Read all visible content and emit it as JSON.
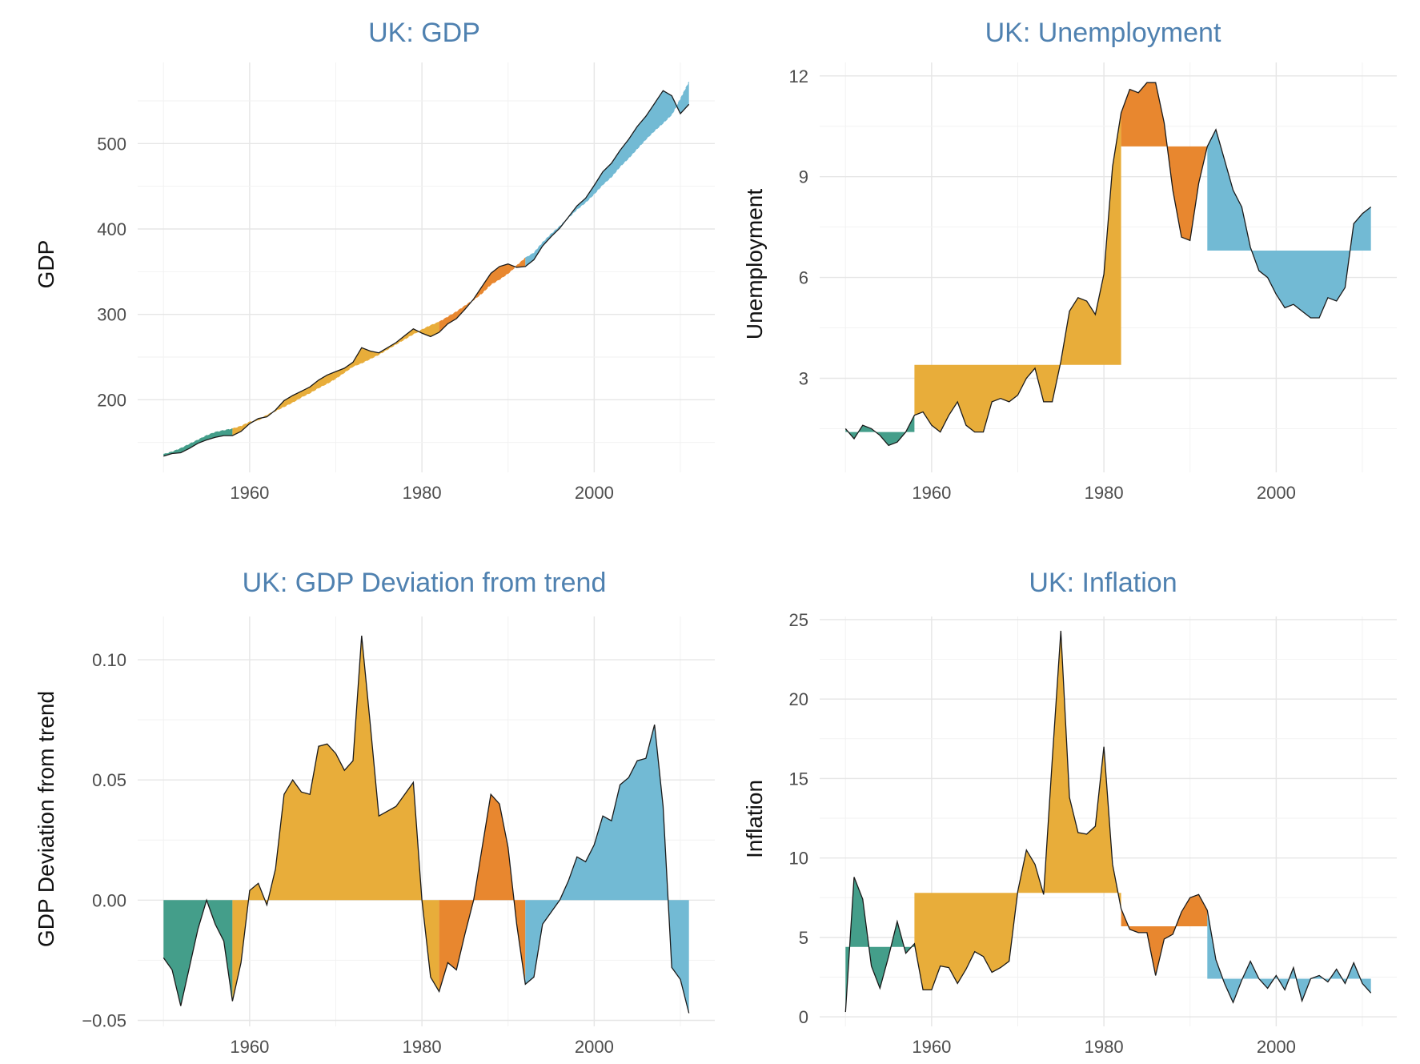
{
  "colors": {
    "period_1": "#449e8a",
    "period_2": "#e8ad3a",
    "period_3": "#e8872f",
    "period_4": "#72bad4",
    "title": "#4f81b0"
  },
  "periods": [
    {
      "from": 1950,
      "to": 1958
    },
    {
      "from": 1958,
      "to": 1982
    },
    {
      "from": 1982,
      "to": 1992
    },
    {
      "from": 1992,
      "to": 2011
    }
  ],
  "chart_data": [
    {
      "id": "gdp",
      "type": "area",
      "title": "UK: GDP",
      "xlabel": "",
      "ylabel": "GDP",
      "xlim": [
        1947,
        2014
      ],
      "ylim": [
        115,
        595
      ],
      "xticks": [
        1960,
        1980,
        2000
      ],
      "yticks": [
        200,
        300,
        400,
        500
      ],
      "fill_mode": "trend",
      "x": [
        1950,
        1951,
        1952,
        1953,
        1954,
        1955,
        1956,
        1957,
        1958,
        1959,
        1960,
        1961,
        1962,
        1963,
        1964,
        1965,
        1966,
        1967,
        1968,
        1969,
        1970,
        1971,
        1972,
        1973,
        1974,
        1975,
        1976,
        1977,
        1978,
        1979,
        1980,
        1981,
        1982,
        1983,
        1984,
        1985,
        1986,
        1987,
        1988,
        1989,
        1990,
        1991,
        1992,
        1993,
        1994,
        1995,
        1996,
        1997,
        1998,
        1999,
        2000,
        2001,
        2002,
        2003,
        2004,
        2005,
        2006,
        2007,
        2008,
        2009,
        2010,
        2011
      ],
      "values": [
        134,
        137,
        138,
        143,
        149,
        153,
        156,
        158,
        158,
        163,
        172,
        178,
        180,
        188,
        199,
        205,
        210,
        215,
        223,
        229,
        233,
        237,
        244,
        261,
        257,
        255,
        261,
        267,
        275,
        283,
        278,
        274,
        279,
        289,
        295,
        306,
        318,
        333,
        348,
        356,
        359,
        355,
        356,
        364,
        380,
        391,
        401,
        414,
        427,
        436,
        451,
        467,
        477,
        492,
        505,
        520,
        532,
        547,
        562,
        556,
        535,
        546
      ],
      "trend": [
        136,
        139,
        143,
        148,
        153,
        158,
        162,
        164,
        166,
        169,
        174,
        176,
        182,
        187,
        192,
        197,
        203,
        208,
        214,
        219,
        225,
        232,
        239,
        243,
        248,
        253,
        259,
        265,
        271,
        277,
        282,
        287,
        291,
        297,
        303,
        310,
        317,
        325,
        335,
        341,
        348,
        357,
        366,
        372,
        384,
        394,
        403,
        413,
        423,
        431,
        441,
        452,
        461,
        473,
        483,
        494,
        505,
        515,
        524,
        534,
        552,
        572
      ],
      "series": [
        {
          "name": "GDP",
          "values": [
            134,
            137,
            138,
            143,
            149,
            153,
            156,
            158,
            158,
            163,
            172,
            178,
            180,
            188,
            199,
            205,
            210,
            215,
            223,
            229,
            233,
            237,
            244,
            261,
            257,
            255,
            261,
            267,
            275,
            283,
            278,
            274,
            279,
            289,
            295,
            306,
            318,
            333,
            348,
            356,
            359,
            355,
            356,
            364,
            380,
            391,
            401,
            414,
            427,
            436,
            451,
            467,
            477,
            492,
            505,
            520,
            532,
            547,
            562,
            556,
            535,
            546
          ]
        }
      ]
    },
    {
      "id": "unemployment",
      "type": "area",
      "title": "UK: Unemployment",
      "xlabel": "",
      "ylabel": "Unemployment",
      "xlim": [
        1947,
        2014
      ],
      "ylim": [
        0.2,
        12.4
      ],
      "xticks": [
        1960,
        1980,
        2000
      ],
      "yticks": [
        3,
        6,
        9,
        12
      ],
      "fill_mode": "period_mean",
      "period_means": [
        1.4,
        3.4,
        9.9,
        6.8
      ],
      "x": [
        1950,
        1951,
        1952,
        1953,
        1954,
        1955,
        1956,
        1957,
        1958,
        1959,
        1960,
        1961,
        1962,
        1963,
        1964,
        1965,
        1966,
        1967,
        1968,
        1969,
        1970,
        1971,
        1972,
        1973,
        1974,
        1975,
        1976,
        1977,
        1978,
        1979,
        1980,
        1981,
        1982,
        1983,
        1984,
        1985,
        1986,
        1987,
        1988,
        1989,
        1990,
        1991,
        1992,
        1993,
        1994,
        1995,
        1996,
        1997,
        1998,
        1999,
        2000,
        2001,
        2002,
        2003,
        2004,
        2005,
        2006,
        2007,
        2008,
        2009,
        2010,
        2011
      ],
      "values": [
        1.5,
        1.2,
        1.6,
        1.5,
        1.3,
        1.0,
        1.1,
        1.4,
        1.9,
        2.0,
        1.6,
        1.4,
        1.9,
        2.3,
        1.6,
        1.4,
        1.4,
        2.3,
        2.4,
        2.3,
        2.5,
        3.0,
        3.3,
        2.3,
        2.3,
        3.5,
        5.0,
        5.4,
        5.3,
        4.9,
        6.1,
        9.3,
        10.9,
        11.6,
        11.5,
        11.8,
        11.8,
        10.6,
        8.6,
        7.2,
        7.1,
        8.8,
        9.9,
        10.4,
        9.5,
        8.6,
        8.1,
        6.9,
        6.2,
        6.0,
        5.5,
        5.1,
        5.2,
        5.0,
        4.8,
        4.8,
        5.4,
        5.3,
        5.7,
        7.6,
        7.9,
        8.1
      ],
      "series": [
        {
          "name": "Unemployment",
          "values": [
            1.5,
            1.2,
            1.6,
            1.5,
            1.3,
            1.0,
            1.1,
            1.4,
            1.9,
            2.0,
            1.6,
            1.4,
            1.9,
            2.3,
            1.6,
            1.4,
            1.4,
            2.3,
            2.4,
            2.3,
            2.5,
            3.0,
            3.3,
            2.3,
            2.3,
            3.5,
            5.0,
            5.4,
            5.3,
            4.9,
            6.1,
            9.3,
            10.9,
            11.6,
            11.5,
            11.8,
            11.8,
            10.6,
            8.6,
            7.2,
            7.1,
            8.8,
            9.9,
            10.4,
            9.5,
            8.6,
            8.1,
            6.9,
            6.2,
            6.0,
            5.5,
            5.1,
            5.2,
            5.0,
            4.8,
            4.8,
            5.4,
            5.3,
            5.7,
            7.6,
            7.9,
            8.1
          ]
        }
      ]
    },
    {
      "id": "gdp_deviation",
      "type": "area",
      "title": "UK: GDP Deviation from trend",
      "xlabel": "",
      "ylabel": "GDP Deviation from trend",
      "xlim": [
        1947,
        2014
      ],
      "ylim": [
        -0.0525,
        0.118
      ],
      "xticks": [
        1960,
        1980,
        2000
      ],
      "yticks": [
        -0.05,
        0.0,
        0.05,
        0.1
      ],
      "ytick_labels": [
        "−0.05",
        "0.00",
        "0.05",
        "0.10"
      ],
      "fill_mode": "zero",
      "x": [
        1950,
        1951,
        1952,
        1953,
        1954,
        1955,
        1956,
        1957,
        1958,
        1959,
        1960,
        1961,
        1962,
        1963,
        1964,
        1965,
        1966,
        1967,
        1968,
        1969,
        1970,
        1971,
        1972,
        1973,
        1974,
        1975,
        1976,
        1977,
        1978,
        1979,
        1980,
        1981,
        1982,
        1983,
        1984,
        1985,
        1986,
        1987,
        1988,
        1989,
        1990,
        1991,
        1992,
        1993,
        1994,
        1995,
        1996,
        1997,
        1998,
        1999,
        2000,
        2001,
        2002,
        2003,
        2004,
        2005,
        2006,
        2007,
        2008,
        2009,
        2010,
        2011
      ],
      "values": [
        -0.024,
        -0.029,
        -0.044,
        -0.028,
        -0.012,
        0.0,
        -0.01,
        -0.017,
        -0.042,
        -0.026,
        0.004,
        0.007,
        -0.002,
        0.013,
        0.044,
        0.05,
        0.045,
        0.044,
        0.064,
        0.065,
        0.061,
        0.054,
        0.058,
        0.11,
        0.073,
        0.035,
        0.037,
        0.039,
        0.044,
        0.049,
        0.0,
        -0.032,
        -0.038,
        -0.026,
        -0.029,
        -0.014,
        0.0,
        0.022,
        0.044,
        0.04,
        0.022,
        -0.01,
        -0.035,
        -0.032,
        -0.01,
        -0.005,
        0.0,
        0.008,
        0.018,
        0.016,
        0.023,
        0.035,
        0.033,
        0.048,
        0.051,
        0.058,
        0.059,
        0.073,
        0.039,
        -0.028,
        -0.033,
        -0.047
      ],
      "series": [
        {
          "name": "GDP Deviation from trend",
          "values": [
            -0.024,
            -0.029,
            -0.044,
            -0.028,
            -0.012,
            0.0,
            -0.01,
            -0.017,
            -0.042,
            -0.026,
            0.004,
            0.007,
            -0.002,
            0.013,
            0.044,
            0.05,
            0.045,
            0.044,
            0.064,
            0.065,
            0.061,
            0.054,
            0.058,
            0.11,
            0.073,
            0.035,
            0.037,
            0.039,
            0.044,
            0.049,
            0.0,
            -0.032,
            -0.038,
            -0.026,
            -0.029,
            -0.014,
            0.0,
            0.022,
            0.044,
            0.04,
            0.022,
            -0.01,
            -0.035,
            -0.032,
            -0.01,
            -0.005,
            0.0,
            0.008,
            0.018,
            0.016,
            0.023,
            0.035,
            0.033,
            0.048,
            0.051,
            0.058,
            0.059,
            0.073,
            0.039,
            -0.028,
            -0.033,
            -0.047
          ]
        }
      ]
    },
    {
      "id": "inflation",
      "type": "area",
      "title": "UK: Inflation",
      "xlabel": "",
      "ylabel": "Inflation",
      "xlim": [
        1947,
        2014
      ],
      "ylim": [
        -0.6,
        25.2
      ],
      "xticks": [
        1960,
        1980,
        2000
      ],
      "yticks": [
        0,
        5,
        10,
        15,
        20,
        25
      ],
      "fill_mode": "period_mean",
      "period_means": [
        4.4,
        7.8,
        5.7,
        2.4
      ],
      "x": [
        1950,
        1951,
        1952,
        1953,
        1954,
        1955,
        1956,
        1957,
        1958,
        1959,
        1960,
        1961,
        1962,
        1963,
        1964,
        1965,
        1966,
        1967,
        1968,
        1969,
        1970,
        1971,
        1972,
        1973,
        1974,
        1975,
        1976,
        1977,
        1978,
        1979,
        1980,
        1981,
        1982,
        1983,
        1984,
        1985,
        1986,
        1987,
        1988,
        1989,
        1990,
        1991,
        1992,
        1993,
        1994,
        1995,
        1996,
        1997,
        1998,
        1999,
        2000,
        2001,
        2002,
        2003,
        2004,
        2005,
        2006,
        2007,
        2008,
        2009,
        2010,
        2011
      ],
      "values": [
        0.3,
        8.8,
        7.4,
        3.2,
        1.8,
        3.8,
        6.0,
        4.0,
        4.6,
        1.7,
        1.7,
        3.2,
        3.1,
        2.1,
        3.0,
        4.1,
        3.8,
        2.8,
        3.1,
        3.5,
        7.9,
        10.5,
        9.6,
        7.7,
        16.2,
        24.3,
        13.8,
        11.6,
        11.5,
        12.0,
        17.0,
        9.6,
        6.8,
        5.5,
        5.3,
        5.3,
        2.6,
        4.9,
        5.2,
        6.6,
        7.5,
        7.7,
        6.7,
        3.6,
        2.1,
        0.9,
        2.3,
        3.5,
        2.4,
        1.8,
        2.6,
        1.7,
        3.1,
        1.0,
        2.4,
        2.6,
        2.2,
        3.0,
        2.1,
        3.4,
        2.1,
        1.5
      ],
      "series": [
        {
          "name": "Inflation",
          "values": [
            0.3,
            8.8,
            7.4,
            3.2,
            1.8,
            3.8,
            6.0,
            4.0,
            4.6,
            1.7,
            1.7,
            3.2,
            3.1,
            2.1,
            3.0,
            4.1,
            3.8,
            2.8,
            3.1,
            3.5,
            7.9,
            10.5,
            9.6,
            7.7,
            16.2,
            24.3,
            13.8,
            11.6,
            11.5,
            12.0,
            17.0,
            9.6,
            6.8,
            5.5,
            5.3,
            5.3,
            2.6,
            4.9,
            5.2,
            6.6,
            7.5,
            7.7,
            6.7,
            3.6,
            2.1,
            0.9,
            2.3,
            3.5,
            2.4,
            1.8,
            2.6,
            1.7,
            3.1,
            1.0,
            2.4,
            2.6,
            2.2,
            3.0,
            2.1,
            3.4,
            2.1,
            1.5
          ]
        }
      ]
    }
  ]
}
